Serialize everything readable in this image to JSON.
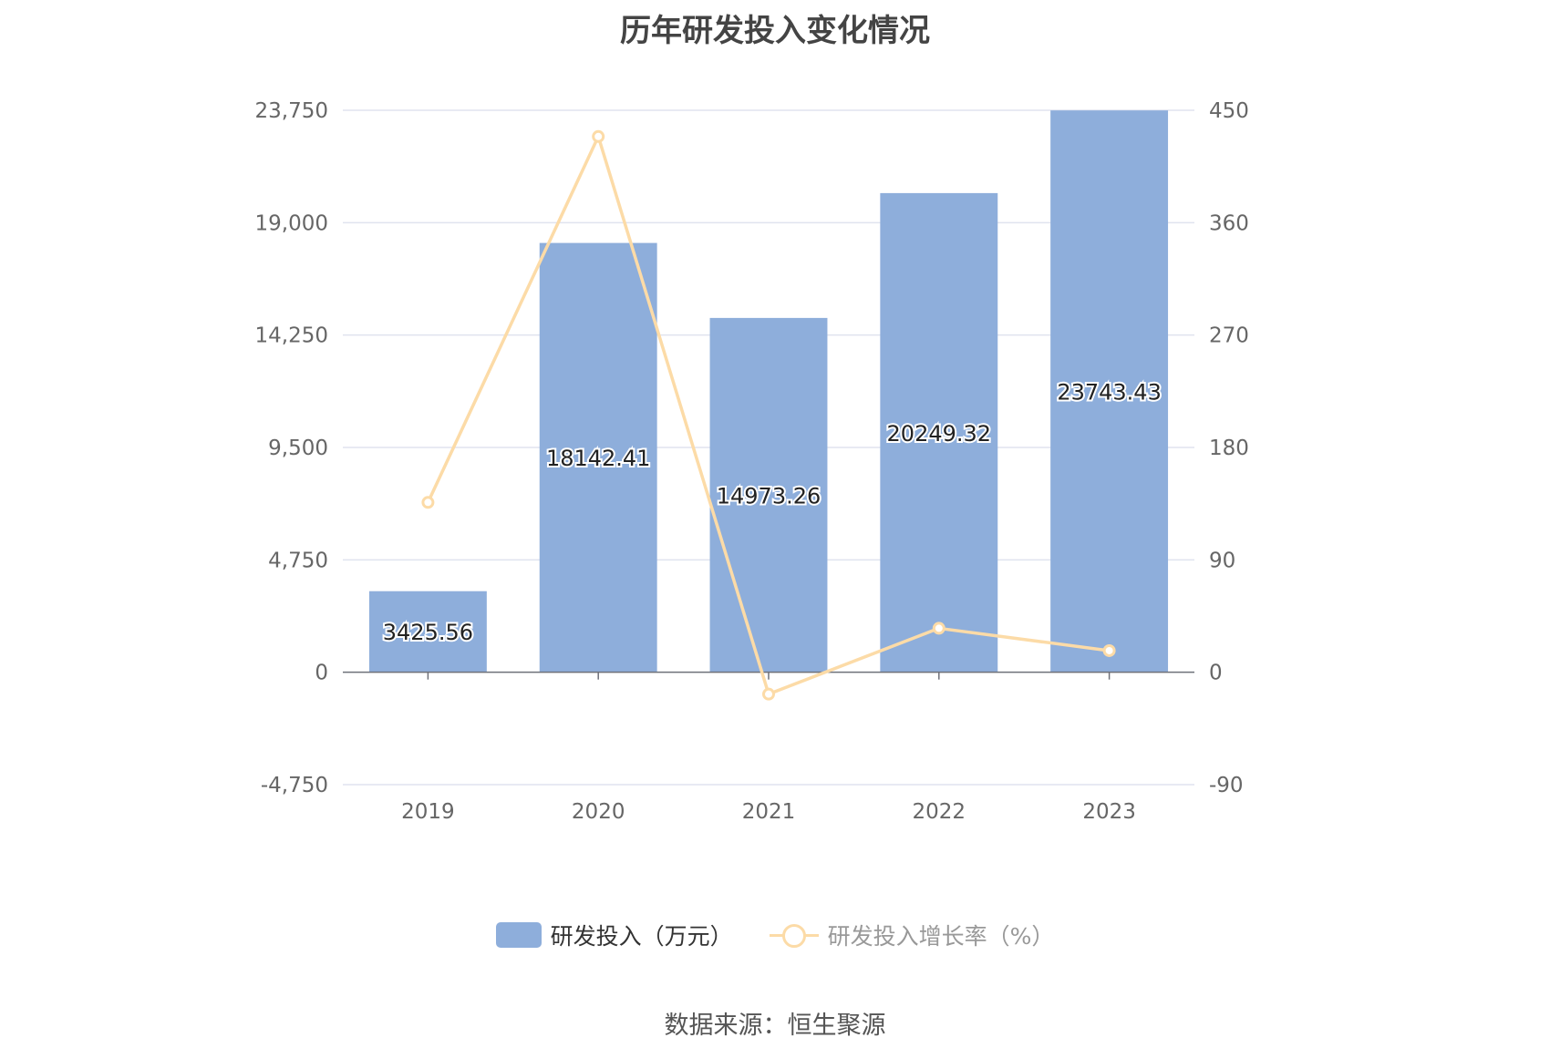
{
  "chart_data": {
    "type": "bar",
    "title": "历年研发投入变化情况",
    "categories": [
      "2019",
      "2020",
      "2021",
      "2022",
      "2023"
    ],
    "series": [
      {
        "name": "研发投入（万元）",
        "type": "bar",
        "axis": "left",
        "values": [
          3425.56,
          18142.41,
          14973.26,
          20249.32,
          23743.43
        ]
      },
      {
        "name": "研发投入增长率（%）",
        "type": "line",
        "axis": "right",
        "values": [
          136,
          429,
          -17.5,
          35.2,
          17.3
        ]
      }
    ],
    "y_left": {
      "ticks": [
        "-4,750",
        "0",
        "4,750",
        "9,500",
        "14,250",
        "19,000",
        "23,750"
      ],
      "ylim": [
        -4750,
        23750
      ]
    },
    "y_right": {
      "ticks": [
        "-90",
        "0",
        "90",
        "180",
        "270",
        "360",
        "450"
      ],
      "ylim": [
        -90,
        450
      ]
    },
    "grid": true,
    "legend_position": "bottom"
  },
  "colors": {
    "bar": "#8eaedb",
    "line": "#fcdba7",
    "grid": "#e0e3ef",
    "axis": "#6e7079"
  },
  "legend": {
    "bar_label": "研发投入（万元）",
    "line_label": "研发投入增长率（%）"
  },
  "source": "数据来源：恒生聚源"
}
